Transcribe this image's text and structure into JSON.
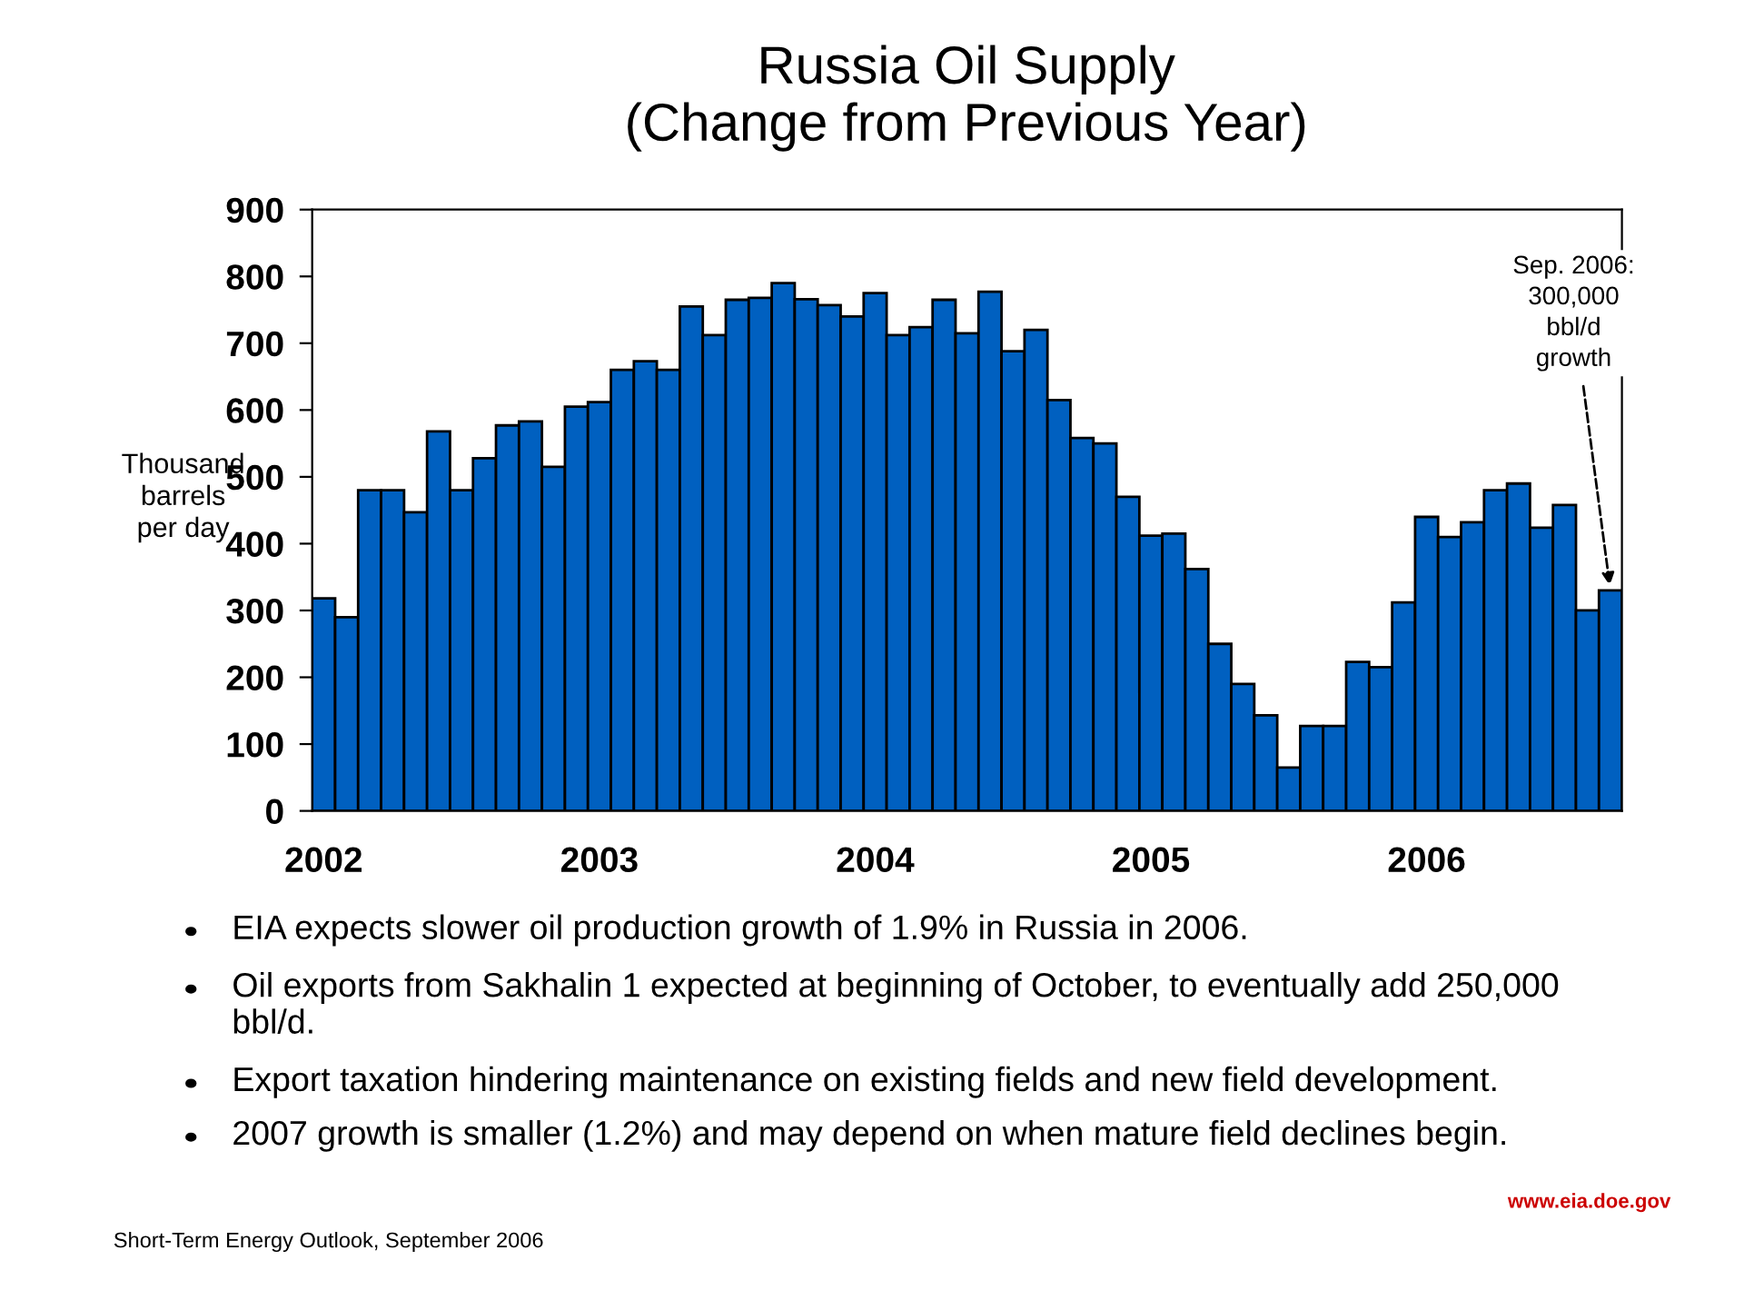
{
  "chart_data": {
    "type": "bar",
    "title": "Russia Oil Supply\n(Change from Previous Year)",
    "ylabel": "Thousand\nbarrels\nper day",
    "categories": [
      "2002",
      null,
      null,
      null,
      null,
      null,
      null,
      null,
      null,
      null,
      null,
      null,
      "2003",
      null,
      null,
      null,
      null,
      null,
      null,
      null,
      null,
      null,
      null,
      null,
      "2004",
      null,
      null,
      null,
      null,
      null,
      null,
      null,
      null,
      null,
      null,
      null,
      "2005",
      null,
      null,
      null,
      null,
      null,
      null,
      null,
      null,
      null,
      null,
      null,
      "2006",
      null,
      null,
      null,
      null,
      null,
      null,
      null,
      null
    ],
    "values": [
      318,
      290,
      480,
      480,
      447,
      568,
      480,
      528,
      577,
      583,
      515,
      605,
      612,
      660,
      673,
      660,
      755,
      712,
      765,
      768,
      790,
      766,
      757,
      740,
      775,
      712,
      724,
      765,
      715,
      777,
      688,
      720,
      615,
      558,
      550,
      470,
      412,
      415,
      362,
      250,
      190,
      143,
      65,
      127,
      127,
      223,
      215,
      312,
      440,
      410,
      432,
      480,
      490,
      424,
      458,
      300,
      330
    ],
    "color": "#0060c0",
    "ylim": [
      0,
      900
    ],
    "yticks": [
      0,
      100,
      200,
      300,
      400,
      500,
      600,
      700,
      800,
      900
    ],
    "grid": false,
    "legend": false,
    "annotations": [
      "Sep. 2006:\n300,000\nbbl/d\ngrowth",
      "EIA expects slower oil production growth of 1.9% in Russia in 2006.",
      "Oil exports from Sakhalin 1 expected at beginning of October, to eventually add 250,000\nbbl/d.",
      "Export taxation hindering maintenance on existing fields and new field development.",
      "2007 growth is smaller (1.2%) and may depend on when mature field declines begin.",
      "Short-Term Energy Outlook, September 2006",
      "www.eia.doe.gov"
    ]
  }
}
